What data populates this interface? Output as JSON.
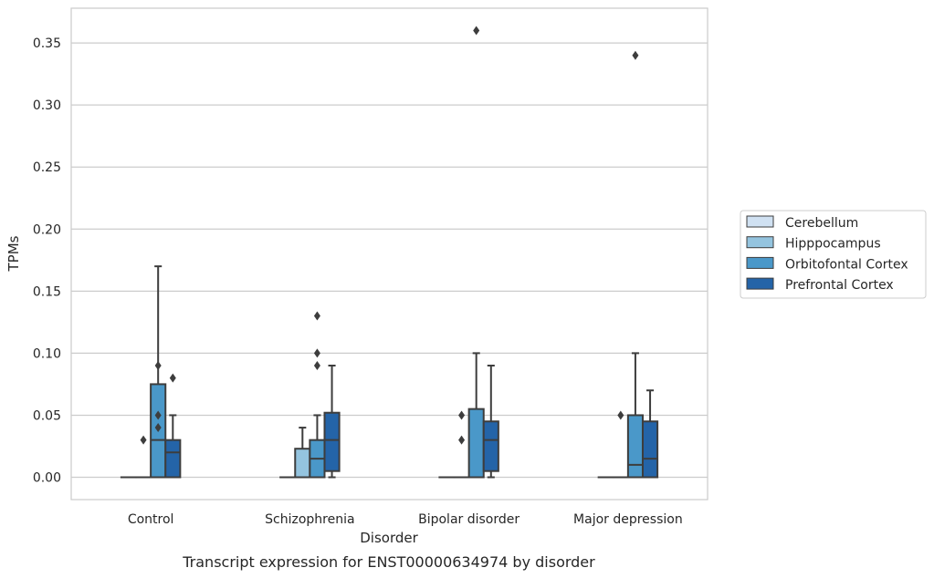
{
  "chart_data": {
    "type": "box",
    "caption": "Transcript expression for ENST00000634974 by disorder",
    "xlabel": "Disorder",
    "ylabel": "TPMs",
    "ylim": [
      -0.018,
      0.378
    ],
    "yticks": [
      0.0,
      0.05,
      0.1,
      0.15,
      0.2,
      0.25,
      0.3,
      0.35
    ],
    "ytick_labels": [
      "0.00",
      "0.05",
      "0.10",
      "0.15",
      "0.20",
      "0.25",
      "0.30",
      "0.35"
    ],
    "grid": "horizontal",
    "legend_position": "right",
    "categories": [
      "Control",
      "Schizophrenia",
      "Bipolar disorder",
      "Major depression"
    ],
    "series": [
      {
        "name": "Cerebellum",
        "color": "#d0e1f2",
        "boxes": [
          {
            "q1": 0,
            "median": 0,
            "q3": 0,
            "whisker_low": 0,
            "whisker_high": 0,
            "outliers": []
          },
          {
            "q1": 0,
            "median": 0,
            "q3": 0,
            "whisker_low": 0,
            "whisker_high": 0,
            "outliers": []
          },
          {
            "q1": 0,
            "median": 0,
            "q3": 0,
            "whisker_low": 0,
            "whisker_high": 0,
            "outliers": []
          },
          {
            "q1": 0,
            "median": 0,
            "q3": 0,
            "whisker_low": 0,
            "whisker_high": 0,
            "outliers": []
          }
        ]
      },
      {
        "name": "Hipppocampus",
        "color": "#94c4df",
        "boxes": [
          {
            "q1": 0,
            "median": 0,
            "q3": 0,
            "whisker_low": 0,
            "whisker_high": 0,
            "outliers": [
              0.03
            ]
          },
          {
            "q1": 0,
            "median": 0,
            "q3": 0.023,
            "whisker_low": 0,
            "whisker_high": 0.04,
            "outliers": []
          },
          {
            "q1": 0,
            "median": 0,
            "q3": 0,
            "whisker_low": 0,
            "whisker_high": 0,
            "outliers": []
          },
          {
            "q1": 0,
            "median": 0,
            "q3": 0,
            "whisker_low": 0,
            "whisker_high": 0,
            "outliers": []
          }
        ]
      },
      {
        "name": "Orbitofontal Cortex",
        "color": "#4a98c9",
        "boxes": [
          {
            "q1": 0,
            "median": 0.03,
            "q3": 0.075,
            "whisker_low": 0,
            "whisker_high": 0.17,
            "outliers": [
              0.04,
              0.05,
              0.09
            ]
          },
          {
            "q1": 0,
            "median": 0.015,
            "q3": 0.03,
            "whisker_low": 0,
            "whisker_high": 0.05,
            "outliers": [
              0.09,
              0.1,
              0.13
            ]
          },
          {
            "q1": 0,
            "median": 0,
            "q3": 0.055,
            "whisker_low": 0,
            "whisker_high": 0.1,
            "outliers": [
              0.36
            ]
          },
          {
            "q1": 0,
            "median": 0.01,
            "q3": 0.05,
            "whisker_low": 0,
            "whisker_high": 0.1,
            "outliers": [
              0.34
            ]
          }
        ]
      },
      {
        "name": "Prefrontal Cortex",
        "color": "#2464a8",
        "boxes": [
          {
            "q1": 0,
            "median": 0.02,
            "q3": 0.03,
            "whisker_low": 0,
            "whisker_high": 0.05,
            "outliers": [
              0.08
            ]
          },
          {
            "q1": 0.005,
            "median": 0.03,
            "q3": 0.052,
            "whisker_low": 0,
            "whisker_high": 0.09,
            "outliers": []
          },
          {
            "q1": 0.005,
            "median": 0.03,
            "q3": 0.045,
            "whisker_low": 0,
            "whisker_high": 0.09,
            "outliers": []
          },
          {
            "q1": 0,
            "median": 0.015,
            "q3": 0.045,
            "whisker_low": 0,
            "whisker_high": 0.07,
            "outliers": []
          }
        ]
      }
    ],
    "hipppocampus_outlier_note": "",
    "extra_outliers": [
      {
        "category_index": 1,
        "series_index": 1,
        "values": []
      },
      {
        "category_index": 2,
        "series_index": 1,
        "values": [
          0.03,
          0.05
        ]
      },
      {
        "category_index": 3,
        "series_index": 1,
        "values": [
          0.05
        ]
      }
    ]
  }
}
